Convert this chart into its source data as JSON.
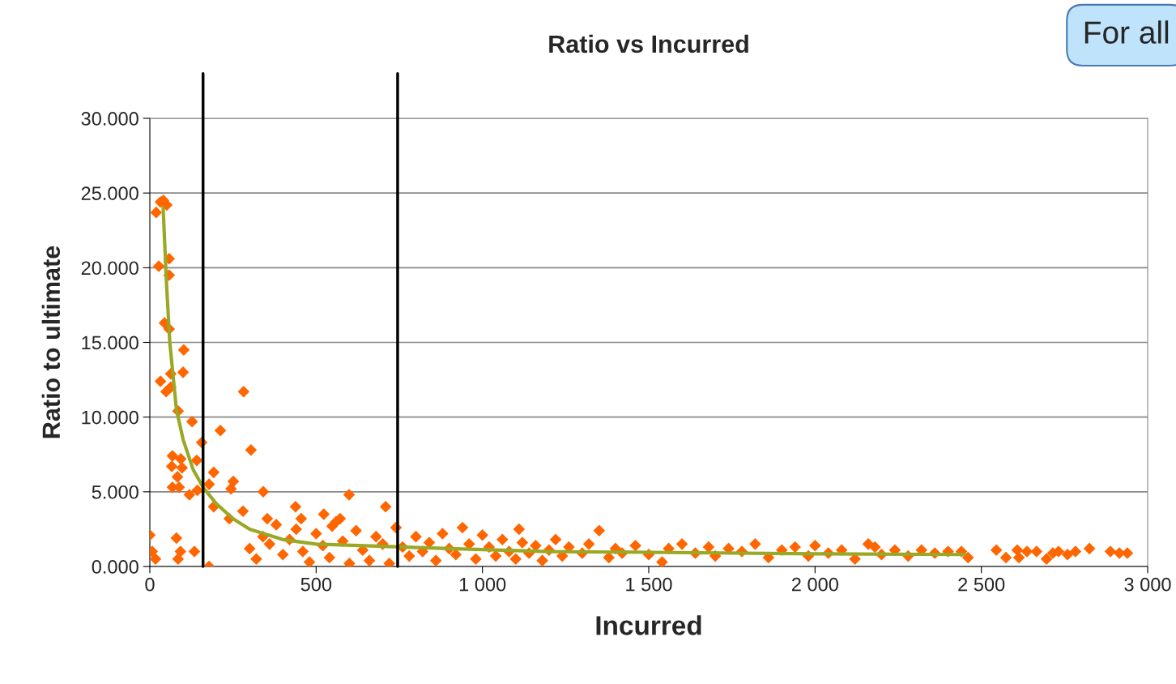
{
  "chart_data": {
    "type": "scatter",
    "title": "Ratio vs Incurred",
    "xlabel": "Incurred",
    "ylabel": "Ratio to ultimate",
    "annotations": [
      "For all"
    ],
    "xlim": [
      0,
      3000
    ],
    "xticks": [
      0,
      500,
      {
        "value": 1000,
        "label": "1 000"
      },
      {
        "value": 1500,
        "label": "1 500"
      },
      {
        "value": 2000,
        "label": "2 000"
      },
      {
        "value": 2500,
        "label": "2 500"
      },
      {
        "value": 3000,
        "label": "3 000"
      }
    ],
    "ylim": [
      0,
      30
    ],
    "yticks": [
      {
        "value": 0,
        "label": "0.000"
      },
      {
        "value": 5,
        "label": "5.000"
      },
      {
        "value": 10,
        "label": "10.000"
      },
      {
        "value": 15,
        "label": "15.000"
      },
      {
        "value": 20,
        "label": "20.000"
      },
      {
        "value": 25,
        "label": "25.000"
      },
      {
        "value": 30,
        "label": "30.000"
      }
    ],
    "grid": "y",
    "legend": false,
    "ref_lines": [
      {
        "axis": "x",
        "value": 160,
        "color": "#000000"
      },
      {
        "axis": "x",
        "value": 745,
        "color": "#000000"
      }
    ],
    "series": [
      {
        "color": "#ff6600",
        "marker": "diamond",
        "x": [
          19,
          32,
          41,
          51,
          27,
          58,
          58,
          44,
          58,
          102,
          32,
          63,
          49,
          63,
          100,
          282,
          85,
          127,
          212,
          304,
          68,
          93,
          141,
          66,
          97,
          83,
          156,
          68,
          88,
          119,
          143,
          192,
          178,
          251,
          244,
          341,
          599,
          709,
          80,
          0,
          7,
          17,
          85,
          92,
          134,
          178,
          192,
          239,
          280,
          353,
          438,
          455,
          523,
          572,
          548,
          300,
          320,
          340,
          360,
          380,
          400,
          420,
          440,
          460,
          480,
          500,
          520,
          540,
          560,
          580,
          600,
          620,
          640,
          660,
          680,
          700,
          720,
          740,
          760,
          780,
          800,
          820,
          840,
          860,
          880,
          900,
          920,
          940,
          960,
          980,
          1000,
          1020,
          1040,
          1060,
          1080,
          1100,
          1110,
          1120,
          1140,
          1160,
          1180,
          1200,
          1220,
          1240,
          1260,
          1300,
          1320,
          1351,
          1380,
          1400,
          1420,
          1460,
          1500,
          1540,
          1560,
          1600,
          1640,
          1680,
          1700,
          1740,
          1780,
          1820,
          1860,
          1900,
          1940,
          1980,
          2000,
          2040,
          2080,
          2120,
          2160,
          2180,
          2200,
          2240,
          2280,
          2320,
          2360,
          2400,
          2440,
          2460,
          2545,
          2574,
          2608,
          2613,
          2637,
          2666,
          2696,
          2715,
          2732,
          2759,
          2783,
          2825,
          2888,
          2915,
          2939
        ],
        "values": [
          23.7,
          24.4,
          24.5,
          24.2,
          20.1,
          20.6,
          19.5,
          16.3,
          15.9,
          14.5,
          12.4,
          12.9,
          11.7,
          12.0,
          13.0,
          11.7,
          10.4,
          9.7,
          9.1,
          7.8,
          7.4,
          7.2,
          7.1,
          6.7,
          6.6,
          6.0,
          8.3,
          5.3,
          5.3,
          4.8,
          5.1,
          6.3,
          5.5,
          5.7,
          5.2,
          5.0,
          4.8,
          4.0,
          1.9,
          2.1,
          1.0,
          0.5,
          0.5,
          1.0,
          1.0,
          0.0,
          4.0,
          3.2,
          3.7,
          3.2,
          4.0,
          3.2,
          3.5,
          3.2,
          2.7,
          1.2,
          0.5,
          2.0,
          1.5,
          2.8,
          0.8,
          1.8,
          2.5,
          1.0,
          0.3,
          2.2,
          1.4,
          0.6,
          3.0,
          1.7,
          0.2,
          2.4,
          1.1,
          0.4,
          2.0,
          1.5,
          0.2,
          2.6,
          1.3,
          0.7,
          2.0,
          1.0,
          1.6,
          0.4,
          2.2,
          1.2,
          0.8,
          2.6,
          1.5,
          0.5,
          2.1,
          1.3,
          0.7,
          1.8,
          1.0,
          0.5,
          2.5,
          1.6,
          0.9,
          1.4,
          0.4,
          1.1,
          1.8,
          0.7,
          1.3,
          0.9,
          1.5,
          2.4,
          0.6,
          1.2,
          0.9,
          1.4,
          0.8,
          0.3,
          1.2,
          1.5,
          0.9,
          1.3,
          0.7,
          1.2,
          1.0,
          1.5,
          0.6,
          1.1,
          1.3,
          0.7,
          1.4,
          0.9,
          1.1,
          0.5,
          1.5,
          1.3,
          0.8,
          1.1,
          0.7,
          1.1,
          0.9,
          1.0,
          1.0,
          0.6,
          1.1,
          0.6,
          1.1,
          0.6,
          1.0,
          1.0,
          0.5,
          0.9,
          1.0,
          0.8,
          1.0,
          1.2,
          1.0,
          0.9,
          0.9
        ]
      },
      {
        "type": "line",
        "color": "#99a825",
        "marker": "none",
        "line_style": "solid",
        "x": [
          40,
          50,
          60,
          80,
          100,
          130,
          160,
          200,
          250,
          300,
          400,
          500,
          700,
          900,
          1200,
          1500,
          2000,
          2450
        ],
        "values": [
          24,
          19,
          15,
          10.5,
          8.5,
          6.5,
          5.3,
          4.2,
          3.2,
          2.5,
          1.8,
          1.5,
          1.35,
          1.2,
          1.0,
          0.95,
          0.85,
          0.8
        ]
      }
    ]
  }
}
